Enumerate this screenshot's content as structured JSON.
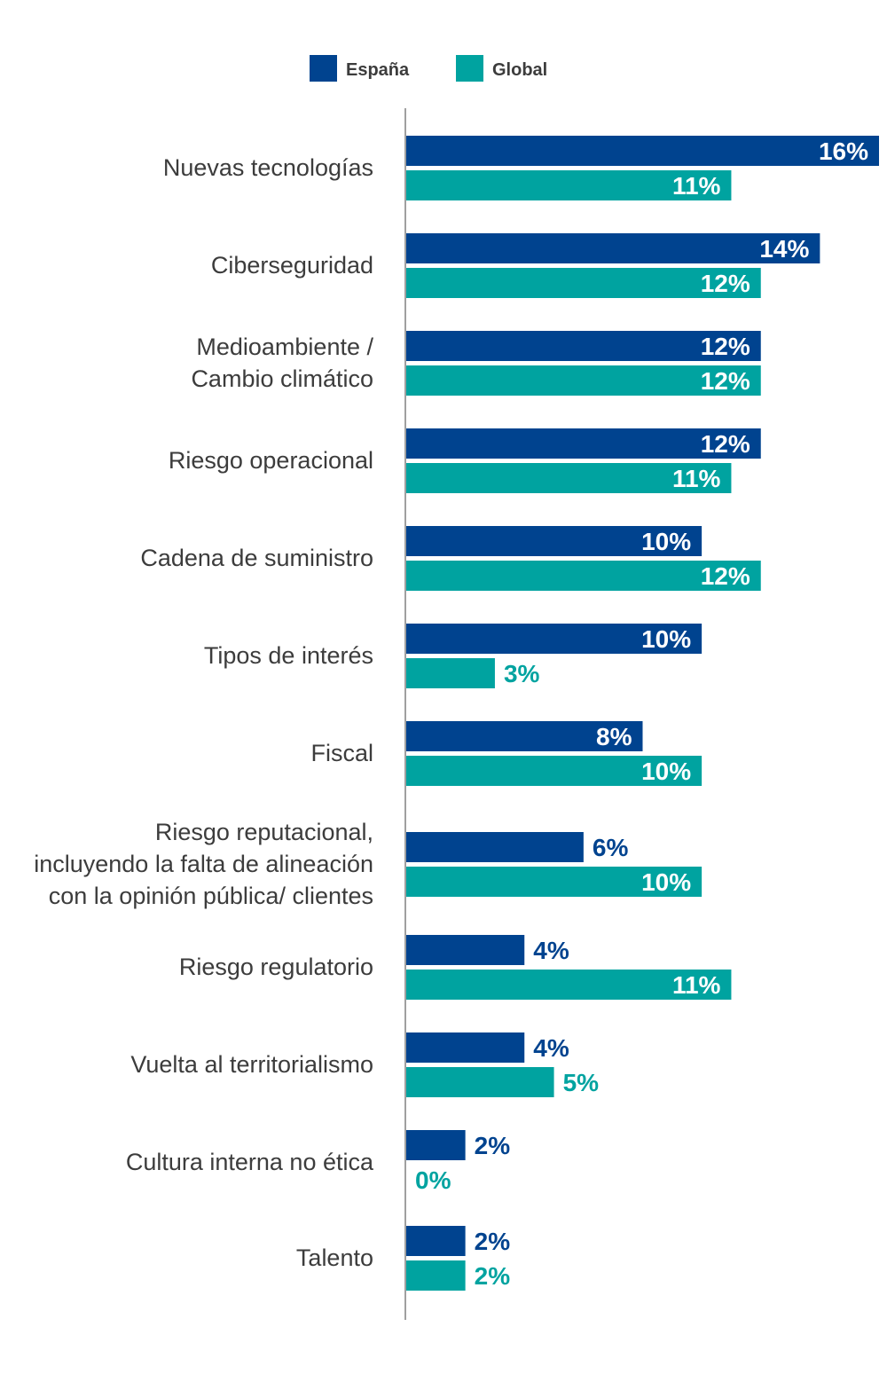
{
  "colors": {
    "espana": "#00438f",
    "global": "#00a3a0",
    "axis": "#a0a0a0"
  },
  "chart_data": {
    "type": "bar",
    "orientation": "horizontal",
    "title": "",
    "xlabel": "",
    "ylabel": "",
    "xlim": [
      0,
      16
    ],
    "grid": false,
    "legend": {
      "placement": "top-center",
      "entries": [
        "España",
        "Global"
      ]
    },
    "categories": [
      [
        "Nuevas tecnologías"
      ],
      [
        "Ciberseguridad"
      ],
      [
        "Medioambiente /",
        "Cambio climático"
      ],
      [
        "Riesgo operacional"
      ],
      [
        "Cadena de suministro"
      ],
      [
        "Tipos de interés"
      ],
      [
        "Fiscal"
      ],
      [
        "Riesgo reputacional,",
        "incluyendo la falta de alineación",
        "con la opinión pública/ clientes"
      ],
      [
        "Riesgo regulatorio"
      ],
      [
        "Vuelta al territorialismo"
      ],
      [
        "Cultura interna no ética"
      ],
      [
        "Talento"
      ]
    ],
    "series": [
      {
        "name": "España",
        "values": [
          16,
          14,
          12,
          12,
          10,
          10,
          8,
          6,
          4,
          4,
          2,
          2
        ]
      },
      {
        "name": "Global",
        "values": [
          11,
          12,
          12,
          11,
          12,
          3,
          10,
          10,
          11,
          5,
          0,
          2
        ]
      }
    ],
    "value_suffix": "%"
  }
}
